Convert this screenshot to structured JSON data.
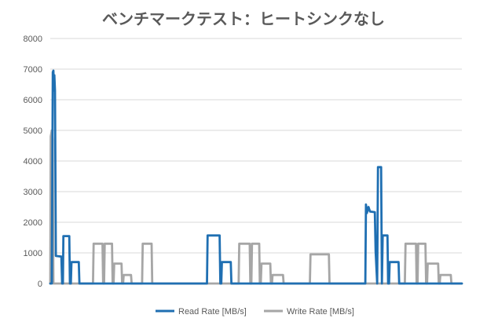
{
  "chart_data": {
    "type": "line",
    "title": "ベンチマークテスト：ヒートシンクなし",
    "xlabel": "",
    "ylabel": "",
    "ylim": [
      0,
      8000
    ],
    "yticks": [
      "0",
      "1000",
      "2000",
      "3000",
      "4000",
      "5000",
      "6000",
      "7000",
      "8000"
    ],
    "grid": true,
    "legend": "bottom",
    "series": [
      {
        "name": "Read Rate [MB/s]",
        "color": "#1f6fb2",
        "points": [
          [
            0,
            0
          ],
          [
            1,
            0
          ],
          [
            1.6,
            6900
          ],
          [
            2,
            6950
          ],
          [
            2.3,
            6300
          ],
          [
            2.6,
            6800
          ],
          [
            3,
            6300
          ],
          [
            3.5,
            900
          ],
          [
            7,
            880
          ],
          [
            7.5,
            0
          ],
          [
            8,
            0
          ],
          [
            8.3,
            1550
          ],
          [
            12,
            1550
          ],
          [
            12.4,
            0
          ],
          [
            13,
            0
          ],
          [
            13.4,
            700
          ],
          [
            18,
            700
          ],
          [
            18.4,
            0
          ],
          [
            99,
            0
          ],
          [
            99.4,
            1570
          ],
          [
            107,
            1570
          ],
          [
            107.4,
            0
          ],
          [
            108,
            0
          ],
          [
            108.4,
            700
          ],
          [
            114,
            700
          ],
          [
            114.4,
            0
          ],
          [
            199,
            0
          ],
          [
            199.4,
            2580
          ],
          [
            200,
            2300
          ],
          [
            201,
            2500
          ],
          [
            202,
            2350
          ],
          [
            205,
            2330
          ],
          [
            205.5,
            1050
          ],
          [
            206.5,
            0
          ],
          [
            207,
            3800
          ],
          [
            209,
            3800
          ],
          [
            209.5,
            0
          ],
          [
            210,
            1570
          ],
          [
            213,
            1570
          ],
          [
            213.4,
            0
          ],
          [
            214,
            0
          ],
          [
            214.4,
            700
          ],
          [
            220,
            700
          ],
          [
            220.4,
            0
          ],
          [
            260,
            0
          ]
        ]
      },
      {
        "name": "Write Rate [MB/s]",
        "color": "#a6a6a6",
        "points": [
          [
            0,
            0
          ],
          [
            0.3,
            4800
          ],
          [
            1,
            5000
          ],
          [
            1.5,
            4700
          ],
          [
            2,
            0
          ],
          [
            27,
            0
          ],
          [
            27.4,
            1300
          ],
          [
            33,
            1300
          ],
          [
            33.4,
            0
          ],
          [
            34,
            0
          ],
          [
            34.4,
            1300
          ],
          [
            39,
            1300
          ],
          [
            39.4,
            0
          ],
          [
            40,
            0
          ],
          [
            40.4,
            650
          ],
          [
            45,
            650
          ],
          [
            45.4,
            0
          ],
          [
            46,
            0
          ],
          [
            46.4,
            280
          ],
          [
            51,
            280
          ],
          [
            51.4,
            0
          ],
          [
            58,
            0
          ],
          [
            58.4,
            1300
          ],
          [
            64,
            1300
          ],
          [
            64.4,
            0
          ],
          [
            119,
            0
          ],
          [
            119.4,
            1300
          ],
          [
            126,
            1300
          ],
          [
            126.4,
            0
          ],
          [
            127,
            0
          ],
          [
            127.4,
            1300
          ],
          [
            132,
            1300
          ],
          [
            132.4,
            0
          ],
          [
            133,
            0
          ],
          [
            133.4,
            650
          ],
          [
            139,
            650
          ],
          [
            139.4,
            0
          ],
          [
            140,
            0
          ],
          [
            140.4,
            280
          ],
          [
            147,
            280
          ],
          [
            147.4,
            0
          ],
          [
            164,
            0
          ],
          [
            164.4,
            950
          ],
          [
            176,
            950
          ],
          [
            176.4,
            0
          ],
          [
            224,
            0
          ],
          [
            224.4,
            1300
          ],
          [
            231,
            1300
          ],
          [
            231.4,
            0
          ],
          [
            232,
            0
          ],
          [
            232.4,
            1300
          ],
          [
            237,
            1300
          ],
          [
            237.4,
            0
          ],
          [
            238,
            0
          ],
          [
            238.4,
            650
          ],
          [
            245,
            650
          ],
          [
            245.4,
            0
          ],
          [
            246,
            0
          ],
          [
            246.4,
            280
          ],
          [
            253,
            280
          ],
          [
            253.4,
            0
          ],
          [
            260,
            0
          ]
        ]
      }
    ]
  }
}
